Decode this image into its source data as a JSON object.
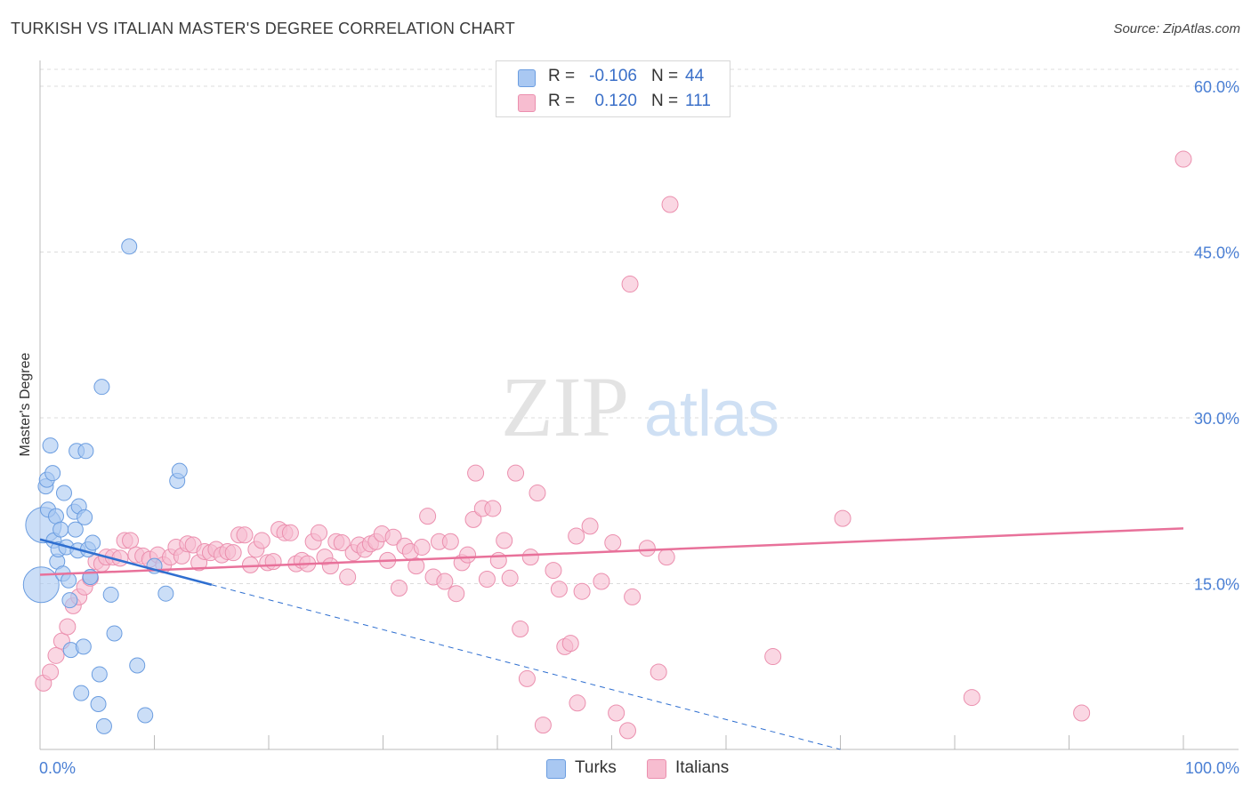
{
  "title": "TURKISH VS ITALIAN MASTER'S DEGREE CORRELATION CHART",
  "source": "Source: ZipAtlas.com",
  "watermark": {
    "zip": "ZIP",
    "atlas": "atlas"
  },
  "legend": {
    "rows": [
      {
        "r_label": "R =",
        "r_value": "-0.106",
        "n_label": "N =",
        "n_value": "44"
      },
      {
        "r_label": "R =",
        "r_value": "0.120",
        "n_label": "N =",
        "n_value": "111"
      }
    ]
  },
  "colors": {
    "turks_fill": "#a9c8f2",
    "turks_stroke": "#6b9de0",
    "turks_line": "#2f6fd0",
    "italians_fill": "#f7bdd0",
    "italians_stroke": "#eb8fae",
    "italians_line": "#e8719a",
    "axis_text": "#4a7fd4",
    "grid": "#dcdcdc"
  },
  "chart_data": {
    "type": "scatter",
    "title": "TURKISH VS ITALIAN MASTER'S DEGREE CORRELATION CHART",
    "ylabel": "Master's Degree",
    "xlim": [
      0,
      100
    ],
    "ylim": [
      0,
      60
    ],
    "x_tick_labels": [
      "0.0%",
      "100.0%"
    ],
    "y_ticks": [
      15,
      30,
      45,
      60
    ],
    "y_tick_labels": [
      "15.0%",
      "30.0%",
      "45.0%",
      "60.0%"
    ],
    "grid": true,
    "legend_position": "top-center",
    "series": [
      {
        "name": "Turks",
        "R": -0.106,
        "N": 44,
        "trend_solid": {
          "x": [
            0,
            15
          ],
          "y": [
            19.0,
            14.9
          ]
        },
        "trend_dashed": {
          "x": [
            15,
            70
          ],
          "y": [
            14.9,
            0
          ]
        },
        "points": [
          {
            "x": 0.1,
            "y": 14.9,
            "big": true
          },
          {
            "x": 0.3,
            "y": 20.3,
            "big": true
          },
          {
            "x": 0.5,
            "y": 23.8
          },
          {
            "x": 0.6,
            "y": 24.4
          },
          {
            "x": 0.7,
            "y": 21.7
          },
          {
            "x": 0.9,
            "y": 27.5
          },
          {
            "x": 1.1,
            "y": 25.0
          },
          {
            "x": 1.2,
            "y": 18.9
          },
          {
            "x": 1.4,
            "y": 21.1
          },
          {
            "x": 1.5,
            "y": 17.0
          },
          {
            "x": 1.6,
            "y": 18.1
          },
          {
            "x": 1.8,
            "y": 19.9
          },
          {
            "x": 2.0,
            "y": 15.9
          },
          {
            "x": 2.1,
            "y": 23.2
          },
          {
            "x": 2.3,
            "y": 18.3
          },
          {
            "x": 2.5,
            "y": 15.3
          },
          {
            "x": 2.6,
            "y": 13.5
          },
          {
            "x": 2.7,
            "y": 9.0
          },
          {
            "x": 3.0,
            "y": 21.5
          },
          {
            "x": 3.1,
            "y": 19.9
          },
          {
            "x": 3.3,
            "y": 18.0
          },
          {
            "x": 3.2,
            "y": 27.0
          },
          {
            "x": 3.4,
            "y": 22.0
          },
          {
            "x": 3.6,
            "y": 5.1
          },
          {
            "x": 3.8,
            "y": 9.3
          },
          {
            "x": 3.9,
            "y": 21.0
          },
          {
            "x": 4.0,
            "y": 27.0
          },
          {
            "x": 4.2,
            "y": 18.1
          },
          {
            "x": 4.4,
            "y": 15.6
          },
          {
            "x": 4.6,
            "y": 18.7
          },
          {
            "x": 5.1,
            "y": 4.1
          },
          {
            "x": 5.2,
            "y": 6.8
          },
          {
            "x": 5.4,
            "y": 32.8
          },
          {
            "x": 5.6,
            "y": 2.1
          },
          {
            "x": 6.2,
            "y": 14.0
          },
          {
            "x": 6.5,
            "y": 10.5
          },
          {
            "x": 7.8,
            "y": 45.5
          },
          {
            "x": 8.5,
            "y": 7.6
          },
          {
            "x": 9.2,
            "y": 3.1
          },
          {
            "x": 10.0,
            "y": 16.6
          },
          {
            "x": 11.0,
            "y": 14.1
          },
          {
            "x": 12.0,
            "y": 24.3
          },
          {
            "x": 12.2,
            "y": 25.2
          },
          {
            "x": 4.4,
            "y": 15.6
          }
        ]
      },
      {
        "name": "Italians",
        "R": 0.12,
        "N": 111,
        "trend_solid": {
          "x": [
            0,
            100
          ],
          "y": [
            15.8,
            20.0
          ]
        },
        "points": [
          {
            "x": 0.3,
            "y": 6.0
          },
          {
            "x": 0.9,
            "y": 7.0
          },
          {
            "x": 1.4,
            "y": 8.5
          },
          {
            "x": 1.9,
            "y": 9.8
          },
          {
            "x": 2.4,
            "y": 11.1
          },
          {
            "x": 2.9,
            "y": 13.0
          },
          {
            "x": 3.4,
            "y": 13.8
          },
          {
            "x": 3.9,
            "y": 14.7
          },
          {
            "x": 4.4,
            "y": 15.5
          },
          {
            "x": 4.9,
            "y": 17.0
          },
          {
            "x": 5.4,
            "y": 16.8
          },
          {
            "x": 5.8,
            "y": 17.4
          },
          {
            "x": 6.4,
            "y": 17.4
          },
          {
            "x": 7.0,
            "y": 17.3
          },
          {
            "x": 7.4,
            "y": 18.9
          },
          {
            "x": 7.9,
            "y": 18.9
          },
          {
            "x": 8.4,
            "y": 17.6
          },
          {
            "x": 9.0,
            "y": 17.5
          },
          {
            "x": 9.6,
            "y": 17.2
          },
          {
            "x": 10.3,
            "y": 17.6
          },
          {
            "x": 10.8,
            "y": 16.7
          },
          {
            "x": 11.4,
            "y": 17.4
          },
          {
            "x": 11.9,
            "y": 18.3
          },
          {
            "x": 12.4,
            "y": 17.5
          },
          {
            "x": 12.9,
            "y": 18.6
          },
          {
            "x": 13.4,
            "y": 18.5
          },
          {
            "x": 13.9,
            "y": 16.9
          },
          {
            "x": 14.4,
            "y": 17.9
          },
          {
            "x": 14.9,
            "y": 17.8
          },
          {
            "x": 15.4,
            "y": 18.1
          },
          {
            "x": 15.9,
            "y": 17.6
          },
          {
            "x": 16.4,
            "y": 17.9
          },
          {
            "x": 16.9,
            "y": 17.8
          },
          {
            "x": 17.4,
            "y": 19.4
          },
          {
            "x": 17.9,
            "y": 19.4
          },
          {
            "x": 18.4,
            "y": 16.7
          },
          {
            "x": 18.9,
            "y": 18.1
          },
          {
            "x": 19.4,
            "y": 18.9
          },
          {
            "x": 19.9,
            "y": 16.9
          },
          {
            "x": 20.4,
            "y": 17.0
          },
          {
            "x": 20.9,
            "y": 19.9
          },
          {
            "x": 21.4,
            "y": 19.6
          },
          {
            "x": 21.9,
            "y": 19.6
          },
          {
            "x": 22.4,
            "y": 16.8
          },
          {
            "x": 22.9,
            "y": 17.1
          },
          {
            "x": 23.4,
            "y": 16.8
          },
          {
            "x": 23.9,
            "y": 18.8
          },
          {
            "x": 24.4,
            "y": 19.6
          },
          {
            "x": 24.9,
            "y": 17.4
          },
          {
            "x": 25.4,
            "y": 16.6
          },
          {
            "x": 25.9,
            "y": 18.8
          },
          {
            "x": 26.4,
            "y": 18.7
          },
          {
            "x": 26.9,
            "y": 15.6
          },
          {
            "x": 27.4,
            "y": 17.8
          },
          {
            "x": 27.9,
            "y": 18.5
          },
          {
            "x": 28.4,
            "y": 18.1
          },
          {
            "x": 28.9,
            "y": 18.6
          },
          {
            "x": 29.4,
            "y": 18.8
          },
          {
            "x": 29.9,
            "y": 19.5
          },
          {
            "x": 30.4,
            "y": 17.1
          },
          {
            "x": 30.9,
            "y": 19.2
          },
          {
            "x": 31.4,
            "y": 14.6
          },
          {
            "x": 31.9,
            "y": 18.4
          },
          {
            "x": 32.4,
            "y": 17.9
          },
          {
            "x": 32.9,
            "y": 16.6
          },
          {
            "x": 33.4,
            "y": 18.3
          },
          {
            "x": 33.9,
            "y": 21.1
          },
          {
            "x": 34.4,
            "y": 15.6
          },
          {
            "x": 34.9,
            "y": 18.8
          },
          {
            "x": 35.4,
            "y": 15.2
          },
          {
            "x": 35.9,
            "y": 18.8
          },
          {
            "x": 36.4,
            "y": 14.1
          },
          {
            "x": 36.9,
            "y": 16.9
          },
          {
            "x": 37.4,
            "y": 17.6
          },
          {
            "x": 37.9,
            "y": 20.8
          },
          {
            "x": 38.1,
            "y": 25.0
          },
          {
            "x": 38.7,
            "y": 21.8
          },
          {
            "x": 39.1,
            "y": 15.4
          },
          {
            "x": 39.6,
            "y": 21.8
          },
          {
            "x": 40.1,
            "y": 17.1
          },
          {
            "x": 40.6,
            "y": 18.9
          },
          {
            "x": 41.1,
            "y": 15.5
          },
          {
            "x": 41.6,
            "y": 25.0
          },
          {
            "x": 42.0,
            "y": 10.9
          },
          {
            "x": 42.6,
            "y": 6.4
          },
          {
            "x": 42.9,
            "y": 17.4
          },
          {
            "x": 43.5,
            "y": 23.2
          },
          {
            "x": 44.0,
            "y": 2.2
          },
          {
            "x": 44.9,
            "y": 16.2
          },
          {
            "x": 45.4,
            "y": 14.5
          },
          {
            "x": 45.9,
            "y": 9.3
          },
          {
            "x": 46.4,
            "y": 9.6
          },
          {
            "x": 46.9,
            "y": 19.3
          },
          {
            "x": 47.0,
            "y": 4.2
          },
          {
            "x": 47.4,
            "y": 14.3
          },
          {
            "x": 48.1,
            "y": 20.2
          },
          {
            "x": 49.1,
            "y": 15.2
          },
          {
            "x": 50.1,
            "y": 18.7
          },
          {
            "x": 50.4,
            "y": 3.3
          },
          {
            "x": 51.4,
            "y": 1.7
          },
          {
            "x": 51.8,
            "y": 13.8
          },
          {
            "x": 53.1,
            "y": 18.2
          },
          {
            "x": 54.1,
            "y": 7.0
          },
          {
            "x": 54.8,
            "y": 17.4
          },
          {
            "x": 55.1,
            "y": 49.3
          },
          {
            "x": 51.6,
            "y": 42.1
          },
          {
            "x": 64.1,
            "y": 8.4
          },
          {
            "x": 70.2,
            "y": 20.9
          },
          {
            "x": 81.5,
            "y": 4.7
          },
          {
            "x": 91.1,
            "y": 3.3
          },
          {
            "x": 100.0,
            "y": 53.4
          }
        ]
      }
    ]
  },
  "bottom_legend": [
    {
      "label": "Turks"
    },
    {
      "label": "Italians"
    }
  ]
}
